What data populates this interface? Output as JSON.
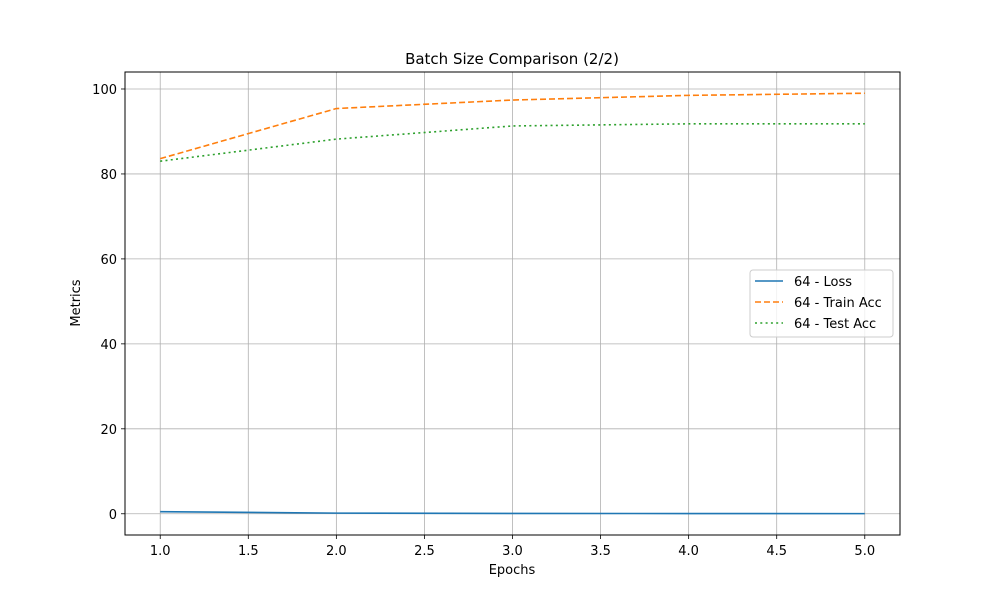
{
  "chart_data": {
    "type": "line",
    "title": "Batch Size Comparison (2/2)",
    "xlabel": "Epochs",
    "ylabel": "Metrics",
    "xlim": [
      0.8,
      5.2
    ],
    "ylim": [
      -5,
      104
    ],
    "xticks": [
      1.0,
      1.5,
      2.0,
      2.5,
      3.0,
      3.5,
      4.0,
      4.5,
      5.0
    ],
    "xtick_labels": [
      "1.0",
      "1.5",
      "2.0",
      "2.5",
      "3.0",
      "3.5",
      "4.0",
      "4.5",
      "5.0"
    ],
    "yticks": [
      0,
      20,
      40,
      60,
      80,
      100
    ],
    "ytick_labels": [
      "0",
      "20",
      "40",
      "60",
      "80",
      "100"
    ],
    "grid": true,
    "legend_position": "center-right",
    "x": [
      1,
      2,
      3,
      4,
      5
    ],
    "series": [
      {
        "name": "64 - Loss",
        "values": [
          0.5,
          0.15,
          0.08,
          0.05,
          0.03
        ],
        "color": "#1f77b4",
        "style": "solid"
      },
      {
        "name": "64 - Train Acc",
        "values": [
          83.6,
          95.4,
          97.4,
          98.5,
          99.0
        ],
        "color": "#ff7f0e",
        "style": "dashed"
      },
      {
        "name": "64 - Test Acc",
        "values": [
          83.0,
          88.2,
          91.3,
          91.8,
          91.8
        ],
        "color": "#2ca02c",
        "style": "dotted"
      }
    ]
  }
}
